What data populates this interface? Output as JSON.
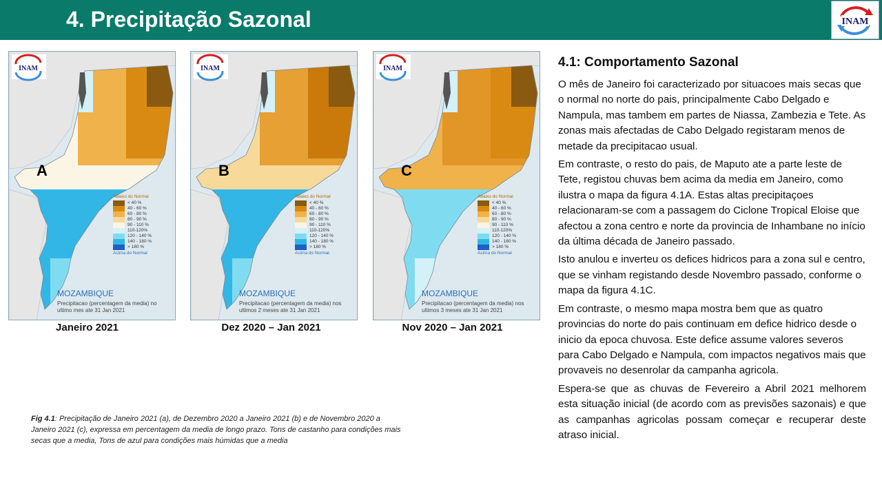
{
  "header": {
    "title": "4. Precipitação Sazonal",
    "logo_text": "INAM"
  },
  "maps": [
    {
      "letter": "A",
      "label": "Janeiro 2021",
      "caption_line1": "Precipitacao (percentagem da media)",
      "caption_line2": "no ultimo mes ate 31 Jan 2021",
      "variant": "a"
    },
    {
      "letter": "B",
      "label": "Dez 2020 – Jan 2021",
      "caption_line1": "Precipitacao (percentagem da media)",
      "caption_line2": "nos ultimos 2 meses ate 31 Jan 2021",
      "variant": "b"
    },
    {
      "letter": "C",
      "label": "Nov 2020 – Jan 2021",
      "caption_line1": "Precipitacao (percentagem da media)",
      "caption_line2": "nos ultimos 3 meses ate 31 Jan 2021",
      "variant": "c"
    }
  ],
  "map_common": {
    "country": "MOZAMBIQUE",
    "legend_title": "Abaixo do Normal",
    "legend_foot": "Acima do Normal",
    "legend": [
      {
        "label": "< 40 %",
        "color": "#8a5a10"
      },
      {
        "label": "40 - 60 %",
        "color": "#d98a12"
      },
      {
        "label": "60 - 80 %",
        "color": "#f0b24a"
      },
      {
        "label": "80 - 90 %",
        "color": "#f7d99a"
      },
      {
        "label": "90 - 110 %",
        "color": "#fbf5e6"
      },
      {
        "label": "110-120%",
        "color": "#d4f1f8"
      },
      {
        "label": "120 - 140 %",
        "color": "#7fdcf0"
      },
      {
        "label": "140 - 180 %",
        "color": "#31b6e6"
      },
      {
        "label": "> 180 %",
        "color": "#1f5fc4"
      }
    ]
  },
  "figure_caption": {
    "prefix": "Fig 4.1",
    "text": ":  Precipitação de Janeiro 2021  (a), de Dezembro 2020  a Janeiro 2021 (b) e de Novembro 2020 a Janeiro 2021  (c), expressa em percentagem da media de longo prazo. Tons de castanho para condições mais secas que a media, Tons de azul para condições mais húmidas que a media"
  },
  "section": {
    "heading": "4.1: Comportamento Sazonal",
    "paragraphs": [
      "O mês de Janeiro foi caracterizado por situacoes mais secas que o normal no norte do pais, principalmente Cabo Delgado e Nampula, mas tambem em partes de Niassa, Zambezia e Tete.  As zonas mais afectadas de Cabo Delgado registaram menos de metade da precipitacao usual.",
      "Em contraste, o resto do pais, de Maputo ate a parte leste de Tete, registou chuvas bem acima da media em Janeiro, como ilustra o mapa da figura 4.1A. Estas altas precipitaçoes relacionaram-se com a passagem do Ciclone Tropical Eloise que afectou a zona centro e norte da provincia de Inhambane no início da última década de Janeiro passado.",
      "Isto anulou e inverteu os defices hidricos para a zona sul e centro, que se vinham registando desde Novembro passado, conforme o mapa da figura 4.1C.",
      "Em contraste, o mesmo mapa mostra bem que as quatro provincias do norte do pais continuam em defice hidrico desde o inicio da epoca chuvosa. Este defice assume valores severos para Cabo Delgado e Nampula, com impactos negativos mais que provaveis no desenrolar da campanha agricola.",
      "Espera-se que as chuvas de Fevereiro a Abril 2021 melhorem esta situação inicial (de acordo com as previsões sazonais) e que as campanhas agricolas possam começar e recuperar deste atraso inicial."
    ]
  }
}
